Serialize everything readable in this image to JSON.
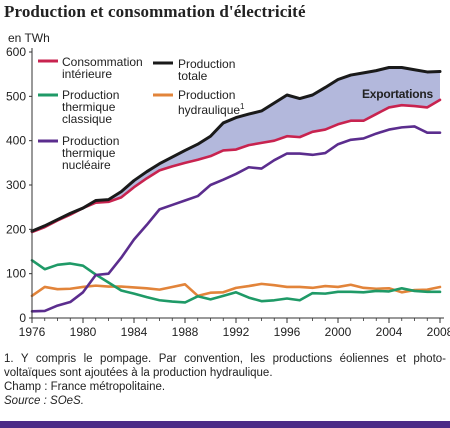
{
  "title": "Production et consommation d'électricité",
  "unit": "en TWh",
  "legend": {
    "consommation": [
      "Consommation",
      "intérieure"
    ],
    "production_totale": [
      "Production",
      "totale"
    ],
    "thermique_classique": [
      "Production",
      "thermique",
      "classique"
    ],
    "hydraulique": [
      "Production",
      "hydraulique"
    ],
    "hydraulique_sup": "1",
    "nucleaire": [
      "Production",
      "thermique",
      "nucléaire"
    ]
  },
  "annotation": "Exportations",
  "notes": {
    "note1": "1. Y compris le pompage. Par convention, les productions éoliennes et photo-voltaïques sont ajoutées à la production hydraulique.",
    "champ": "Champ : France métropolitaine.",
    "source": "Source : SOeS."
  },
  "colors": {
    "consommation": "#c8234f",
    "production_totale": "#1a1a1a",
    "thermique_classique": "#1f9a67",
    "hydraulique": "#e2843a",
    "nucleaire": "#5b2d8e",
    "exports_fill": "#b3b8dc",
    "bottom_rule": "#4b2a86"
  },
  "chart_data": {
    "type": "line",
    "x": [
      1976,
      1977,
      1978,
      1979,
      1980,
      1981,
      1982,
      1983,
      1984,
      1985,
      1986,
      1987,
      1988,
      1989,
      1990,
      1991,
      1992,
      1993,
      1994,
      1995,
      1996,
      1997,
      1998,
      1999,
      2000,
      2001,
      2002,
      2003,
      2004,
      2005,
      2006,
      2007,
      2008
    ],
    "series": [
      {
        "key": "production_totale",
        "values": [
          196,
          208,
          222,
          236,
          248,
          265,
          267,
          285,
          310,
          330,
          348,
          363,
          378,
          392,
          410,
          440,
          452,
          460,
          467,
          485,
          503,
          495,
          503,
          520,
          538,
          548,
          553,
          558,
          565,
          565,
          560,
          555,
          556
        ]
      },
      {
        "key": "consommation",
        "values": [
          194,
          205,
          220,
          233,
          248,
          260,
          262,
          272,
          295,
          315,
          333,
          342,
          350,
          357,
          365,
          378,
          380,
          390,
          395,
          400,
          410,
          408,
          420,
          425,
          437,
          445,
          445,
          460,
          475,
          480,
          478,
          475,
          492
        ]
      },
      {
        "key": "nucleaire",
        "values": [
          15,
          16,
          28,
          36,
          58,
          97,
          100,
          136,
          177,
          210,
          245,
          255,
          265,
          275,
          300,
          312,
          325,
          340,
          337,
          356,
          371,
          371,
          368,
          372,
          392,
          402,
          405,
          416,
          425,
          430,
          432,
          418,
          418
        ]
      },
      {
        "key": "thermique_classique",
        "values": [
          130,
          110,
          120,
          123,
          118,
          98,
          80,
          62,
          55,
          47,
          40,
          37,
          35,
          49,
          42,
          50,
          58,
          46,
          38,
          40,
          44,
          40,
          56,
          55,
          59,
          59,
          58,
          61,
          60,
          67,
          61,
          59,
          59
        ]
      },
      {
        "key": "hydraulique",
        "values": [
          50,
          70,
          65,
          66,
          70,
          73,
          71,
          71,
          69,
          67,
          64,
          70,
          76,
          50,
          57,
          58,
          68,
          72,
          77,
          74,
          70,
          70,
          68,
          72,
          70,
          75,
          68,
          66,
          67,
          58,
          63,
          64,
          70
        ]
      }
    ],
    "xticks": [
      1976,
      1980,
      1984,
      1988,
      1992,
      1996,
      2000,
      2004,
      2008
    ],
    "yticks": [
      0,
      100,
      200,
      300,
      400,
      500,
      600
    ],
    "ylim": [
      0,
      600
    ],
    "xlim": [
      1976,
      2008
    ],
    "grid": false
  }
}
